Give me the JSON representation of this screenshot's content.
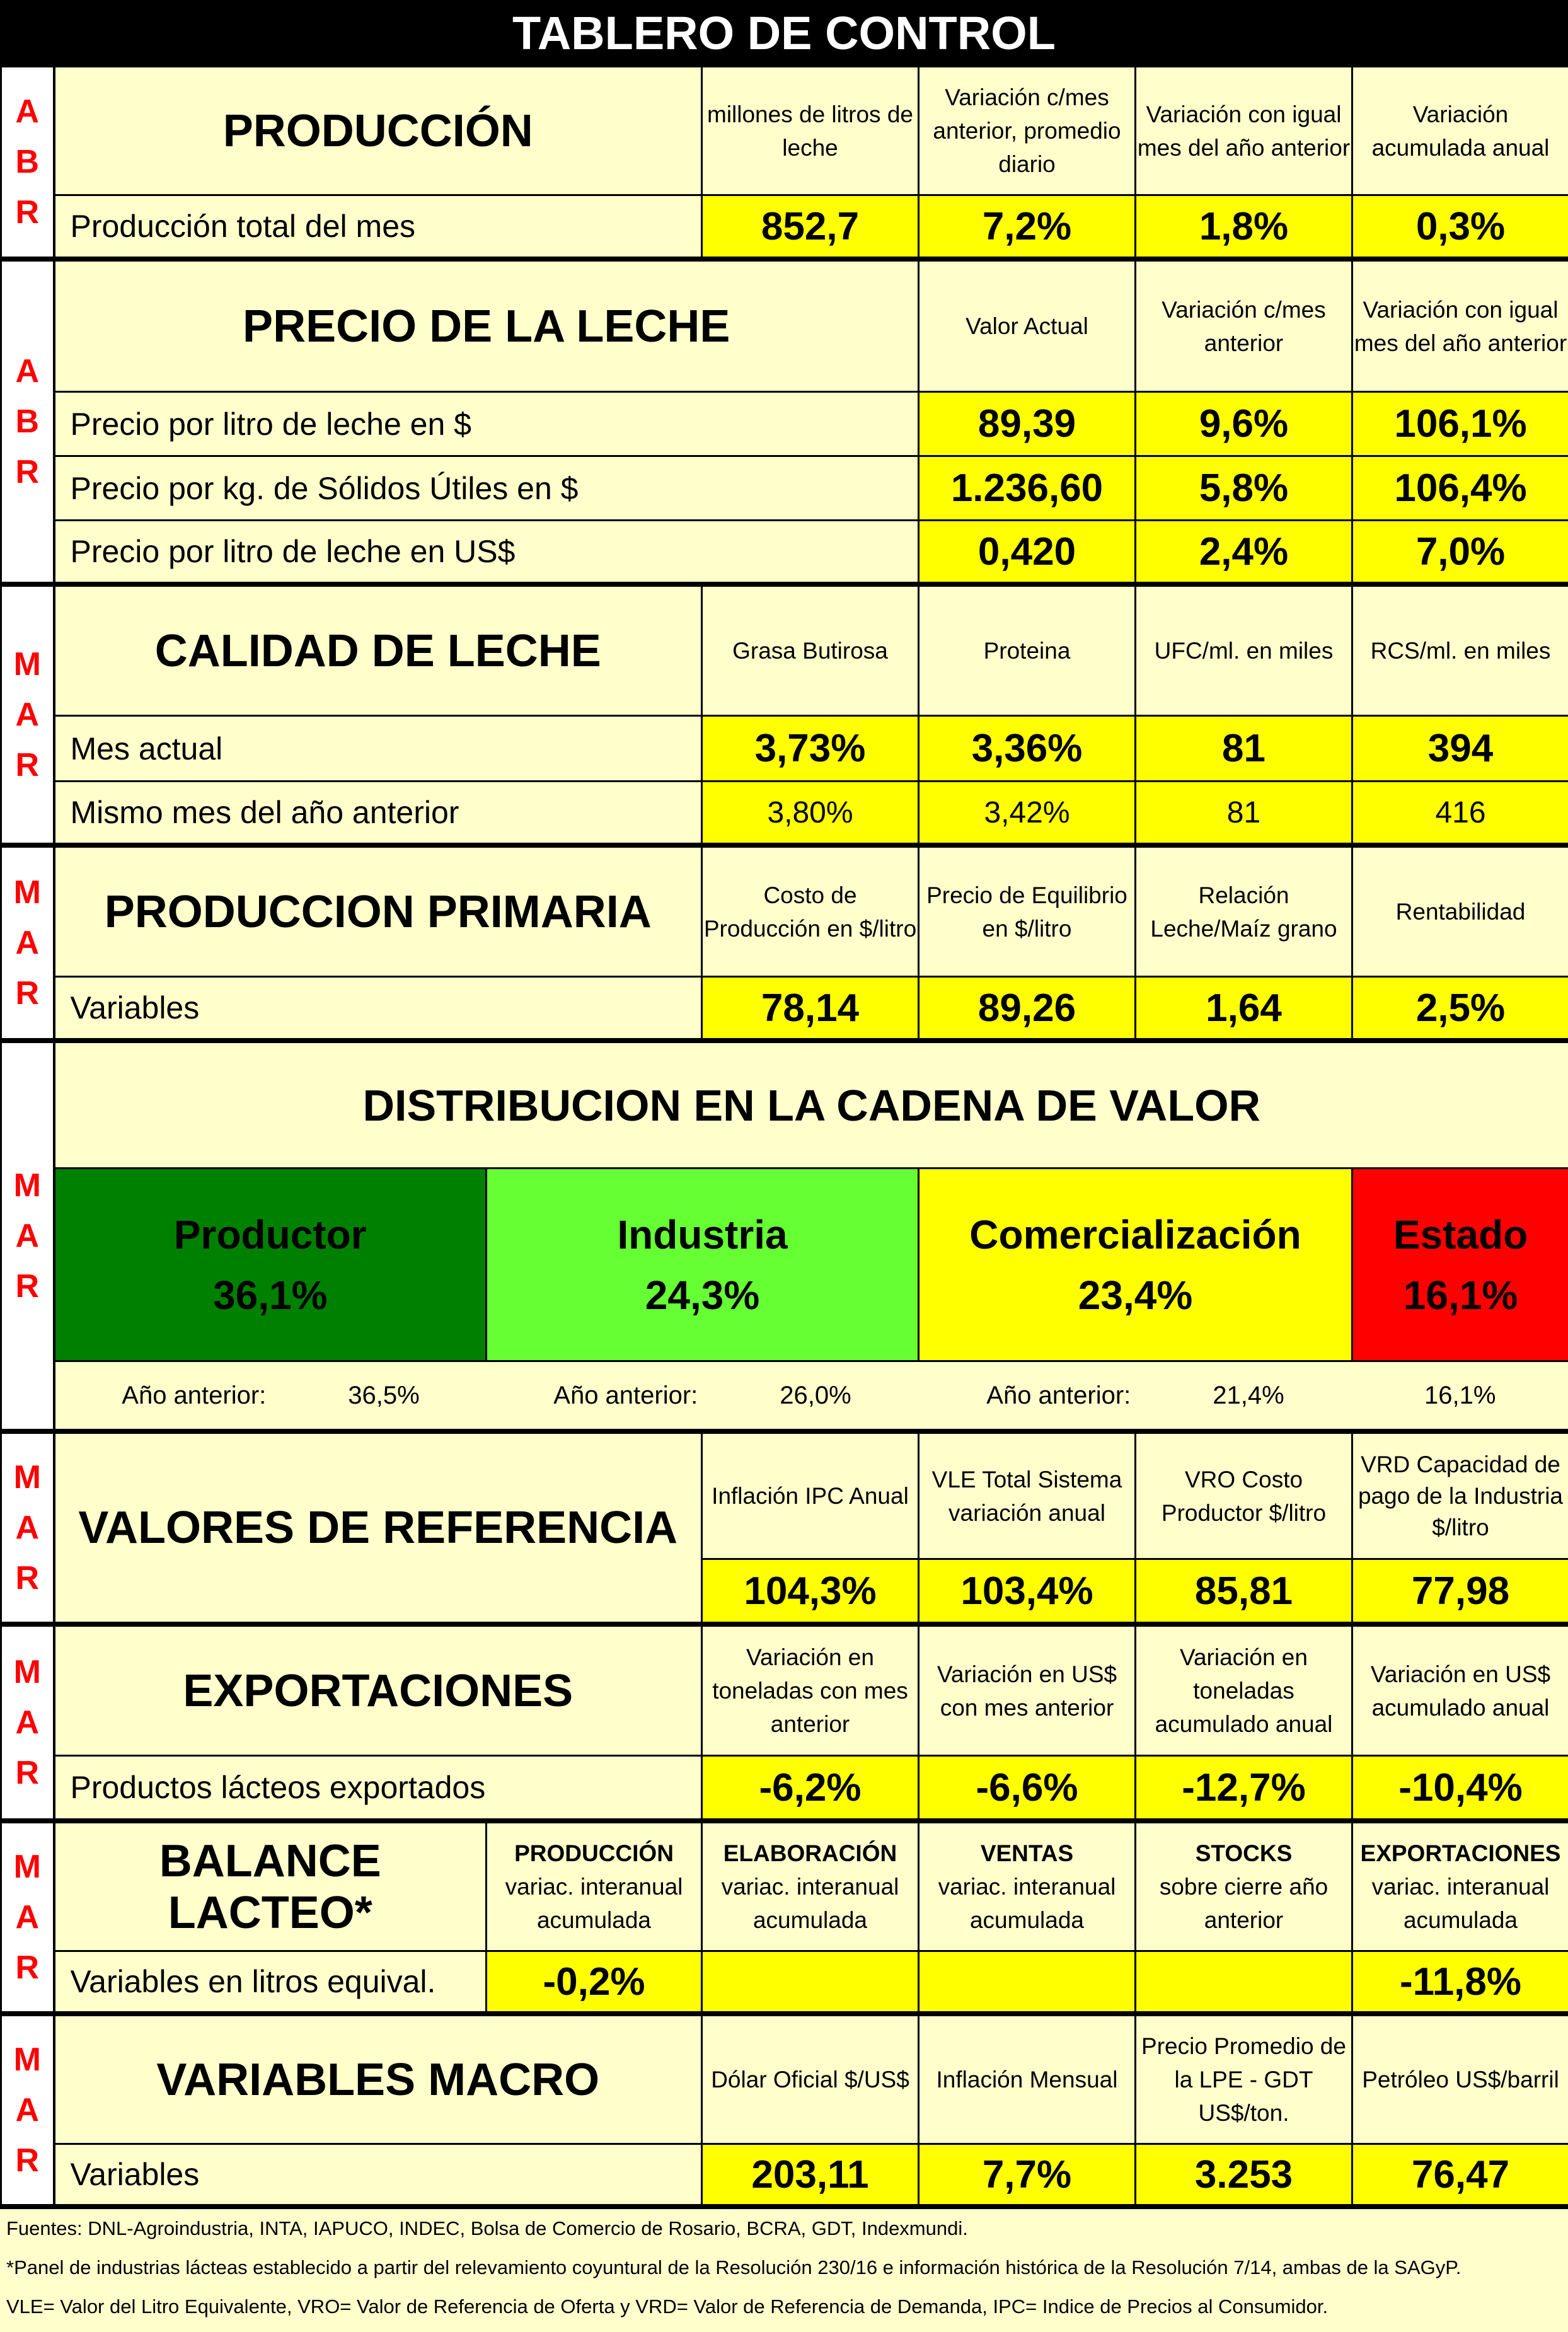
{
  "title": "TABLERO DE CONTROL",
  "produccion": {
    "month": [
      "A",
      "B",
      "R"
    ],
    "title": "PRODUCCIÓN",
    "headers": [
      "millones de litros de leche",
      "Variación c/mes anterior, promedio diario",
      "Variación con igual mes del año anterior",
      "Variación acumulada anual"
    ],
    "row_label": "Producción total del mes",
    "values": [
      "852,7",
      "7,2%",
      "1,8%",
      "0,3%"
    ]
  },
  "precio": {
    "month": [
      "A",
      "B",
      "R"
    ],
    "title": "PRECIO DE LA LECHE",
    "headers": [
      "Valor Actual",
      "Variación c/mes anterior",
      "Variación con igual mes del año anterior"
    ],
    "rows": [
      {
        "label": "Precio por litro de leche en $",
        "values": [
          "89,39",
          "9,6%",
          "106,1%"
        ]
      },
      {
        "label": "Precio por kg. de Sólidos Útiles en $",
        "values": [
          "1.236,60",
          "5,8%",
          "106,4%"
        ]
      },
      {
        "label": "Precio por litro de leche en US$",
        "values": [
          "0,420",
          "2,4%",
          "7,0%"
        ]
      }
    ]
  },
  "calidad": {
    "month": [
      "M",
      "A",
      "R"
    ],
    "title": "CALIDAD DE LECHE",
    "headers": [
      "Grasa Butirosa",
      "Proteina",
      "UFC/ml. en miles",
      "RCS/ml. en miles"
    ],
    "rows": [
      {
        "label": "Mes actual",
        "values": [
          "3,73%",
          "3,36%",
          "81",
          "394"
        ]
      },
      {
        "label": "Mismo mes del año anterior",
        "values": [
          "3,80%",
          "3,42%",
          "81",
          "416"
        ]
      }
    ]
  },
  "primaria": {
    "month": [
      "M",
      "A",
      "R"
    ],
    "title": "PRODUCCION PRIMARIA",
    "headers": [
      "Costo de Producción en $/litro",
      "Precio de Equilibrio en $/litro",
      "Relación Leche/Maíz grano",
      "Rentabilidad"
    ],
    "row_label": "Variables",
    "values": [
      "78,14",
      "89,26",
      "1,64",
      "2,5%"
    ]
  },
  "distribucion": {
    "month": [
      "M",
      "A",
      "R"
    ],
    "title": "DISTRIBUCION EN LA CADENA DE VALOR",
    "items": [
      {
        "name": "Productor",
        "value": "36,1%",
        "prev_label": "Año anterior:",
        "prev": "36,5%"
      },
      {
        "name": "Industria",
        "value": "24,3%",
        "prev_label": "Año anterior:",
        "prev": "26,0%"
      },
      {
        "name": "Comercialización",
        "value": "23,4%",
        "prev_label": "Año anterior:",
        "prev": "21,4%"
      },
      {
        "name": "Estado",
        "value": "16,1%",
        "prev": "16,1%"
      }
    ]
  },
  "referencia": {
    "month": [
      "M",
      "A",
      "R"
    ],
    "title": "VALORES DE REFERENCIA",
    "headers": [
      "Inflación IPC Anual",
      "VLE Total Sistema variación anual",
      "VRO Costo Productor $/litro",
      "VRD Capacidad de pago de la Industria $/litro"
    ],
    "values": [
      "104,3%",
      "103,4%",
      "85,81",
      "77,98"
    ]
  },
  "exportaciones": {
    "month": [
      "M",
      "A",
      "R"
    ],
    "title": "EXPORTACIONES",
    "headers": [
      "Variación en toneladas con mes anterior",
      "Variación en US$ con mes anterior",
      "Variación en toneladas acumulado anual",
      "Variación en US$ acumulado anual"
    ],
    "row_label": "Productos lácteos exportados",
    "values": [
      "-6,2%",
      "-6,6%",
      "-12,7%",
      "-10,4%"
    ]
  },
  "balance": {
    "month": [
      "M",
      "A",
      "R"
    ],
    "title": "BALANCE LACTEO*",
    "headers": [
      {
        "b": "PRODUCCIÓN",
        "t": "variac. interanual acumulada"
      },
      {
        "b": "ELABORACIÓN",
        "t": "variac. interanual acumulada"
      },
      {
        "b": "VENTAS",
        "t": "variac. interanual acumulada"
      },
      {
        "b": "STOCKS",
        "t": "sobre cierre año anterior"
      },
      {
        "b": "EXPORTACIONES",
        "t": "variac. interanual acumulada"
      }
    ],
    "row_label": "Variables en litros equival.",
    "values": [
      "-0,2%",
      "",
      "",
      "",
      "-11,8%"
    ]
  },
  "macro": {
    "month": [
      "M",
      "A",
      "R"
    ],
    "title": "VARIABLES MACRO",
    "headers": [
      "Dólar Oficial $/US$",
      "Inflación Mensual",
      "Precio Promedio de la LPE - GDT US$/ton.",
      "Petróleo US$/barril"
    ],
    "row_label": "Variables",
    "values": [
      "203,11",
      "7,7%",
      "3.253",
      "76,47"
    ]
  },
  "footer": [
    "Fuentes: DNL-Agroindustria, INTA, IAPUCO, INDEC, Bolsa de Comercio de Rosario, BCRA, GDT, Indexmundi.",
    "*Panel de industrias lácteas establecido a partir del relevamiento coyuntural de la Resolución 230/16 e información histórica de la Resolución 7/14, ambas de la SAGyP.",
    "VLE= Valor del Litro Equivalente, VRO= Valor de Referencia de Oferta y VRD= Valor de Referencia de Demanda, IPC= Indice de Precios al Consumidor."
  ]
}
